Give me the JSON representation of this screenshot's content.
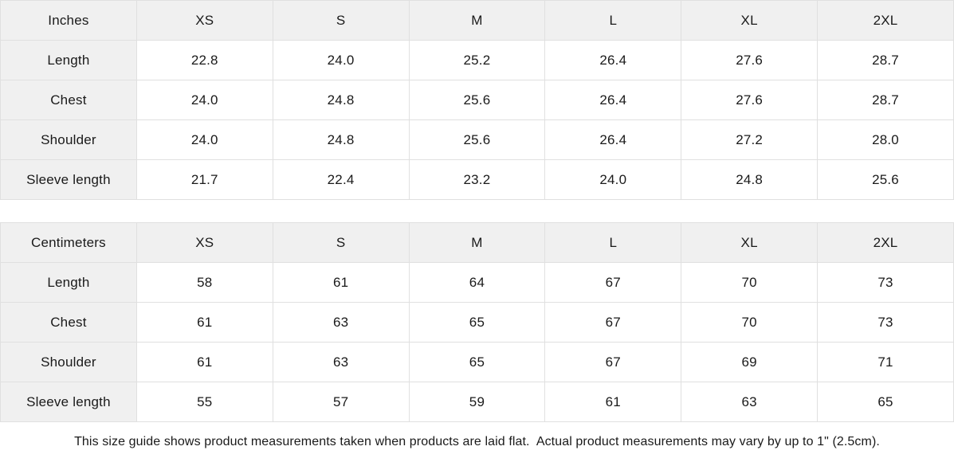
{
  "tables": [
    {
      "unit_label": "Inches",
      "sizes": [
        "XS",
        "S",
        "M",
        "L",
        "XL",
        "2XL"
      ],
      "rows": [
        {
          "label": "Length",
          "values": [
            "22.8",
            "24.0",
            "25.2",
            "26.4",
            "27.6",
            "28.7"
          ]
        },
        {
          "label": "Chest",
          "values": [
            "24.0",
            "24.8",
            "25.6",
            "26.4",
            "27.6",
            "28.7"
          ]
        },
        {
          "label": "Shoulder",
          "values": [
            "24.0",
            "24.8",
            "25.6",
            "26.4",
            "27.2",
            "28.0"
          ]
        },
        {
          "label": "Sleeve length",
          "values": [
            "21.7",
            "22.4",
            "23.2",
            "24.0",
            "24.8",
            "25.6"
          ]
        }
      ]
    },
    {
      "unit_label": "Centimeters",
      "sizes": [
        "XS",
        "S",
        "M",
        "L",
        "XL",
        "2XL"
      ],
      "rows": [
        {
          "label": "Length",
          "values": [
            "58",
            "61",
            "64",
            "67",
            "70",
            "73"
          ]
        },
        {
          "label": "Chest",
          "values": [
            "61",
            "63",
            "65",
            "67",
            "70",
            "73"
          ]
        },
        {
          "label": "Shoulder",
          "values": [
            "61",
            "63",
            "65",
            "67",
            "69",
            "71"
          ]
        },
        {
          "label": "Sleeve length",
          "values": [
            "55",
            "57",
            "59",
            "61",
            "63",
            "65"
          ]
        }
      ]
    }
  ],
  "footer": {
    "note": "This size guide shows product measurements taken when products are laid flat.  Actual product measurements may vary by up to 1\" (2.5cm)."
  },
  "colors": {
    "header_bg": "#f0f0f0",
    "border": "#e0e0e0",
    "text": "#1a1a1a"
  }
}
